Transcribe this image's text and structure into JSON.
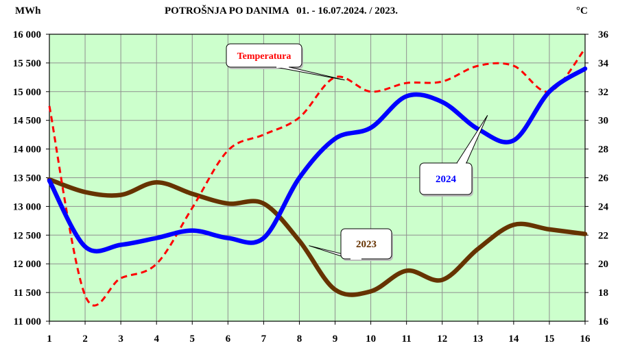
{
  "chart_data": {
    "type": "line",
    "title": "POTROŠNJA PO DANIMA   01. - 16.07.2024. / 2023.",
    "left_unit": "MWh",
    "right_unit": "°C",
    "x": [
      "1",
      "2",
      "3",
      "4",
      "5",
      "6",
      "7",
      "8",
      "9",
      "10",
      "11",
      "12",
      "13",
      "14",
      "15",
      "16"
    ],
    "xlim": [
      1,
      16
    ],
    "ylim_left": [
      11000,
      16000
    ],
    "ylim_right": [
      16,
      36
    ],
    "left_ticks": [
      "11 000",
      "11 500",
      "12 000",
      "12 500",
      "13 000",
      "13 500",
      "14 000",
      "14 500",
      "15 000",
      "15 500",
      "16 000"
    ],
    "right_ticks": [
      "16",
      "18",
      "20",
      "22",
      "24",
      "26",
      "28",
      "30",
      "32",
      "34",
      "36"
    ],
    "grid": true,
    "plot_background": "#ccffcc",
    "series": [
      {
        "name": "2024",
        "axis": "left",
        "color": "#0000ff",
        "dashed": false,
        "values": [
          13450,
          12300,
          12330,
          12450,
          12580,
          12450,
          12450,
          13500,
          14180,
          14370,
          14920,
          14820,
          14350,
          14150,
          15000,
          15400
        ]
      },
      {
        "name": "2023",
        "axis": "left",
        "color": "#663300",
        "dashed": false,
        "values": [
          13470,
          13250,
          13200,
          13420,
          13220,
          13050,
          13050,
          12400,
          11550,
          11520,
          11880,
          11720,
          12260,
          12680,
          12600,
          12520
        ]
      },
      {
        "name": "Temperatura",
        "axis": "right",
        "color": "#ff0000",
        "dashed": true,
        "values": [
          31,
          17.8,
          19,
          20,
          23.9,
          27.9,
          29,
          30.2,
          33,
          32,
          32.6,
          32.7,
          33.8,
          33.8,
          32,
          35
        ]
      }
    ],
    "annotations": [
      {
        "text": "Temperatura",
        "series": "Temperatura",
        "color": "#ff0000"
      },
      {
        "text": "2024",
        "series": "2024",
        "color": "#0000ff"
      },
      {
        "text": "2023",
        "series": "2023",
        "color": "#663300"
      }
    ]
  }
}
